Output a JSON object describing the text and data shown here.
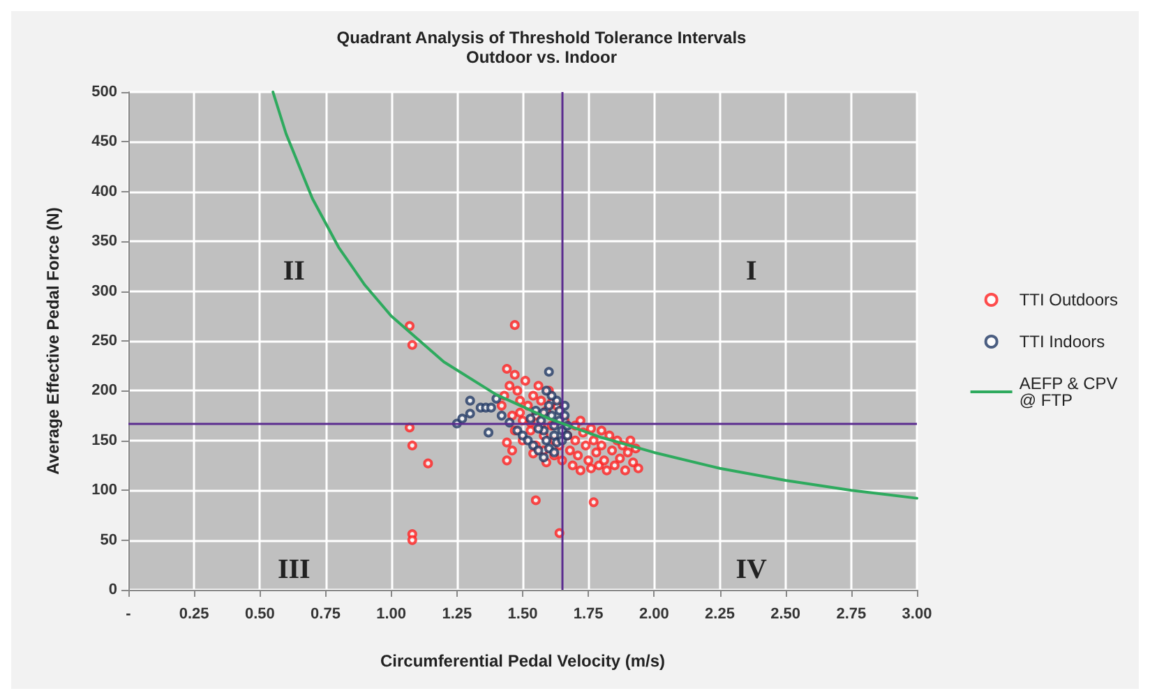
{
  "chart_data": {
    "type": "scatter",
    "title": "Quadrant Analysis of Threshold Tolerance Intervals",
    "subtitle": "Outdoor vs. Indoor",
    "xlabel": "Circumferential Pedal Velocity (m/s)",
    "ylabel": "Average Effective Pedal Force (N)",
    "xlim": [
      0,
      3
    ],
    "xticks": [
      {
        "value": 0,
        "label": "-"
      },
      0.25,
      {
        "value": 0.5,
        "label": "0.50"
      },
      0.75,
      {
        "value": 1,
        "label": "1.00"
      },
      1.25,
      {
        "value": 1.5,
        "label": "1.50"
      },
      1.75,
      {
        "value": 2,
        "label": "2.00"
      },
      2.25,
      {
        "value": 2.5,
        "label": "2.50"
      },
      2.75,
      {
        "value": 3,
        "label": "3.00"
      }
    ],
    "ylim": [
      0,
      500
    ],
    "yticks": [
      0,
      50,
      100,
      150,
      200,
      250,
      300,
      350,
      400,
      450,
      500
    ],
    "grid": true,
    "legend": "right",
    "marker": "circle",
    "ref_lines": [
      {
        "axis": "x",
        "value": 1.65,
        "color": "#5b2c8f"
      },
      {
        "axis": "y",
        "value": 167,
        "color": "#5b2c8f"
      }
    ],
    "annotations": [
      "II",
      "I",
      "III",
      "IV"
    ],
    "series": [
      {
        "name": "TTI Outdoors",
        "color": "#ff2020",
        "x": [
          1.07,
          1.08,
          1.47,
          1.07,
          1.08,
          1.14,
          1.08,
          1.08,
          1.55,
          1.77,
          1.64,
          1.44,
          1.44,
          1.47,
          1.42,
          1.43,
          1.45,
          1.46,
          1.47,
          1.48,
          1.49,
          1.5,
          1.5,
          1.51,
          1.52,
          1.53,
          1.54,
          1.55,
          1.55,
          1.56,
          1.57,
          1.58,
          1.58,
          1.59,
          1.6,
          1.61,
          1.62,
          1.62,
          1.63,
          1.64,
          1.65,
          1.66,
          1.67,
          1.68,
          1.69,
          1.7,
          1.7,
          1.71,
          1.72,
          1.72,
          1.73,
          1.74,
          1.75,
          1.76,
          1.76,
          1.77,
          1.78,
          1.79,
          1.8,
          1.8,
          1.81,
          1.82,
          1.83,
          1.84,
          1.85,
          1.86,
          1.87,
          1.88,
          1.89,
          1.9,
          1.91,
          1.92,
          1.93,
          1.94,
          1.44,
          1.46,
          1.49,
          1.53,
          1.57,
          1.61,
          1.59,
          1.54
        ],
        "values": [
          265,
          246,
          266,
          163,
          145,
          127,
          56,
          50,
          90,
          88,
          57,
          130,
          222,
          216,
          185,
          195,
          205,
          175,
          160,
          200,
          190,
          170,
          150,
          210,
          185,
          160,
          195,
          145,
          175,
          205,
          190,
          155,
          140,
          180,
          200,
          165,
          150,
          135,
          185,
          145,
          130,
          170,
          155,
          140,
          125,
          165,
          150,
          135,
          170,
          120,
          158,
          145,
          130,
          162,
          122,
          150,
          138,
          125,
          160,
          145,
          130,
          120,
          155,
          140,
          125,
          150,
          132,
          145,
          120,
          138,
          150,
          128,
          142,
          122,
          148,
          140,
          178,
          168,
          165,
          188,
          128,
          137
        ]
      },
      {
        "name": "TTI Indoors",
        "color": "#203864",
        "x": [
          1.25,
          1.27,
          1.3,
          1.3,
          1.34,
          1.36,
          1.38,
          1.6,
          1.37,
          1.58,
          1.4,
          1.42,
          1.45,
          1.48,
          1.5,
          1.52,
          1.54,
          1.56,
          1.55,
          1.57,
          1.58,
          1.59,
          1.6,
          1.6,
          1.61,
          1.62,
          1.62,
          1.63,
          1.63,
          1.64,
          1.64,
          1.65,
          1.65,
          1.66,
          1.66,
          1.67,
          1.67,
          1.62,
          1.58,
          1.56,
          1.53,
          1.61,
          1.59
        ],
        "values": [
          167,
          172,
          177,
          190,
          183,
          183,
          183,
          219,
          158,
          133,
          192,
          175,
          168,
          160,
          155,
          150,
          145,
          140,
          180,
          170,
          160,
          150,
          142,
          185,
          175,
          165,
          155,
          148,
          190,
          180,
          170,
          160,
          150,
          185,
          175,
          165,
          155,
          138,
          178,
          162,
          172,
          195,
          200
        ]
      },
      {
        "name": "AEFP & CPV\n@ FTP",
        "type": "line",
        "marker": "none",
        "color": "#2eaa5e",
        "x": [
          0.55,
          0.6,
          0.7,
          0.8,
          0.9,
          1.0,
          1.2,
          1.4,
          1.6,
          1.8,
          2.0,
          2.25,
          2.5,
          2.75,
          3.0
        ],
        "values": [
          500,
          458,
          393,
          344,
          306,
          275,
          229,
          196,
          172,
          153,
          138,
          122,
          110,
          100,
          92
        ]
      }
    ]
  }
}
